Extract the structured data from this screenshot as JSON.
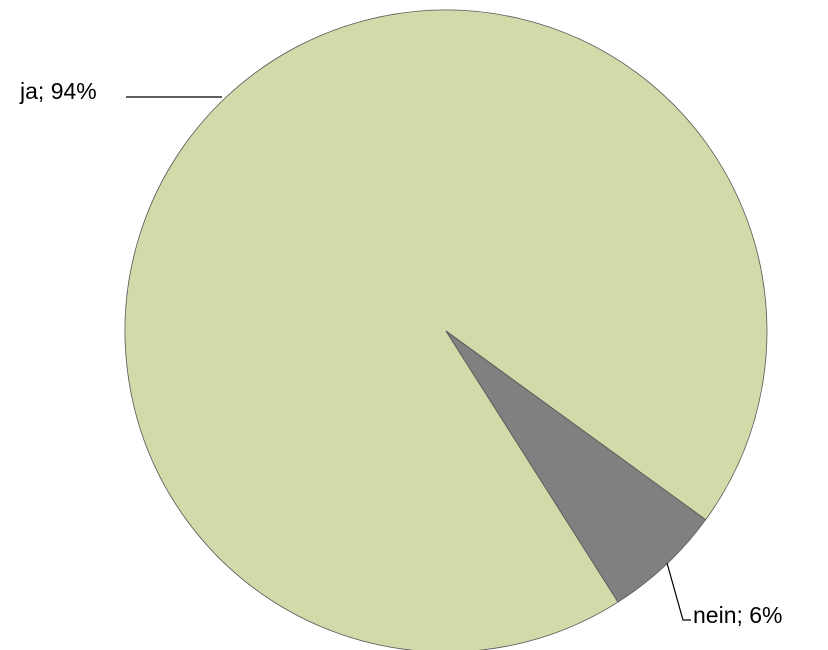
{
  "chart_data": {
    "type": "pie",
    "categories": [
      "ja",
      "nein"
    ],
    "values": [
      94,
      6
    ],
    "value_labels": [
      "94%",
      "6%"
    ],
    "label_separator": "; ",
    "colors": [
      "#d0dba9",
      "#808080"
    ]
  }
}
